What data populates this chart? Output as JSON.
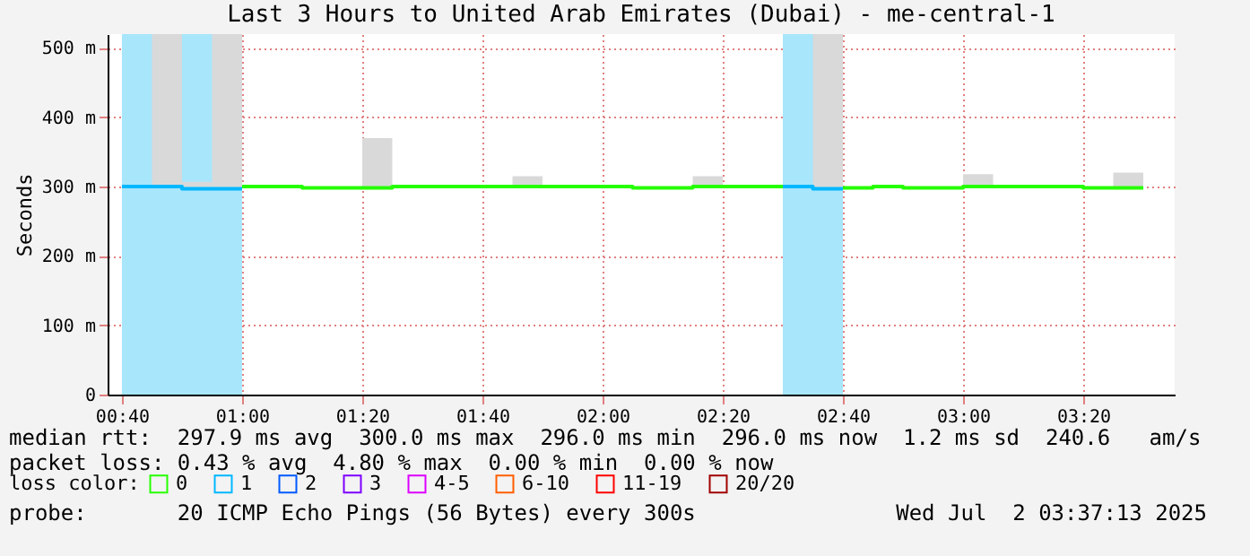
{
  "chart_data": {
    "type": "step",
    "title": "Last 3 Hours to United Arab Emirates (Dubai) - me-central-1",
    "ylabel": "Seconds",
    "legend_title": "loss color:",
    "legend": "bottom",
    "grid": true,
    "xlim": [
      0.627,
      3.587
    ],
    "ylim": [
      0,
      520
    ],
    "xticks": [
      {
        "value": 0.6667,
        "label": "00:40"
      },
      {
        "value": 1,
        "label": "01:00"
      },
      {
        "value": 1.3333,
        "label": "01:20"
      },
      {
        "value": 1.6667,
        "label": "01:40"
      },
      {
        "value": 2,
        "label": "02:00"
      },
      {
        "value": 2.3333,
        "label": "02:20"
      },
      {
        "value": 2.6667,
        "label": "02:40"
      },
      {
        "value": 3,
        "label": "03:00"
      },
      {
        "value": 3.3333,
        "label": "03:20"
      }
    ],
    "yticks": [
      0,
      {
        "value": 100,
        "label": "100 m"
      },
      {
        "value": 200,
        "label": "200 m"
      },
      {
        "value": 300,
        "label": "300 m"
      },
      {
        "value": 400,
        "label": "400 m"
      },
      {
        "value": 500,
        "label": "500 m"
      }
    ],
    "bands": [
      {
        "axis": "x",
        "from": 0.6667,
        "to": 1,
        "color": "#a8e6fc"
      },
      {
        "axis": "x",
        "from": 2.5,
        "to": 2.6667,
        "color": "#a8e6fc"
      }
    ],
    "series": [
      {
        "type": "bar",
        "color": "#d9d9d9",
        "x": [
          0.7917,
          0.875,
          0.9583,
          1.375,
          1.7917,
          2.2917,
          2.625,
          3.0417,
          3.4583
        ],
        "base": [
          298,
          298,
          298,
          298,
          298,
          298,
          298,
          298,
          298
        ],
        "values": [
          222,
          9,
          222,
          72,
          17,
          17,
          222,
          20,
          22
        ]
      },
      {
        "name": "0",
        "color": "#26ff00",
        "x": [
          1,
          1.0833,
          1.1667,
          1.25,
          1.3333,
          1.4167,
          1.5,
          1.5833,
          1.6667,
          1.75,
          1.8333,
          1.9167,
          2,
          2.0833,
          2.1667,
          2.25,
          2.3333,
          2.4167,
          2.5,
          2.5833,
          2.6667,
          2.75,
          2.8333,
          2.9167,
          3,
          3.0833,
          3.1667,
          3.25,
          3.3333,
          3.4167,
          3.5
        ],
        "values": [
          300,
          300,
          298,
          298,
          298,
          300,
          300,
          300,
          300,
          300,
          300,
          300,
          300,
          298,
          298,
          300,
          300,
          300,
          300,
          null,
          298,
          300,
          298,
          298,
          300,
          300,
          300,
          300,
          298,
          298,
          298
        ]
      },
      {
        "name": "1",
        "color": "#00b8ff",
        "x": [
          0.6667,
          0.75,
          0.8333,
          0.9167,
          1,
          1.5,
          2.5,
          2.5833,
          2.6667
        ],
        "values": [
          300,
          300,
          297,
          297,
          297,
          null,
          300,
          297,
          297
        ]
      },
      {
        "name": "2",
        "color": "#0059ff"
      },
      {
        "name": "3",
        "color": "#7e00ff"
      },
      {
        "name": "4-5",
        "color": "#dd00ff"
      },
      {
        "name": "6-10",
        "color": "#ff5e00"
      },
      {
        "name": "11-19",
        "color": "#ff0000"
      },
      {
        "name": "20/20",
        "color": "#a10000"
      }
    ],
    "annotations": [
      "median rtt:  297.9 ms avg  300.0 ms max  296.0 ms min  296.0 ms now  1.2 ms sd  240.6   am/s",
      "packet loss: 0.43 % avg  4.80 % max  0.00 % min  0.00 % now",
      "probe:       20 ICMP Echo Pings (56 Bytes) every 300s",
      "Wed Jul  2 03:37:13 2025"
    ]
  }
}
